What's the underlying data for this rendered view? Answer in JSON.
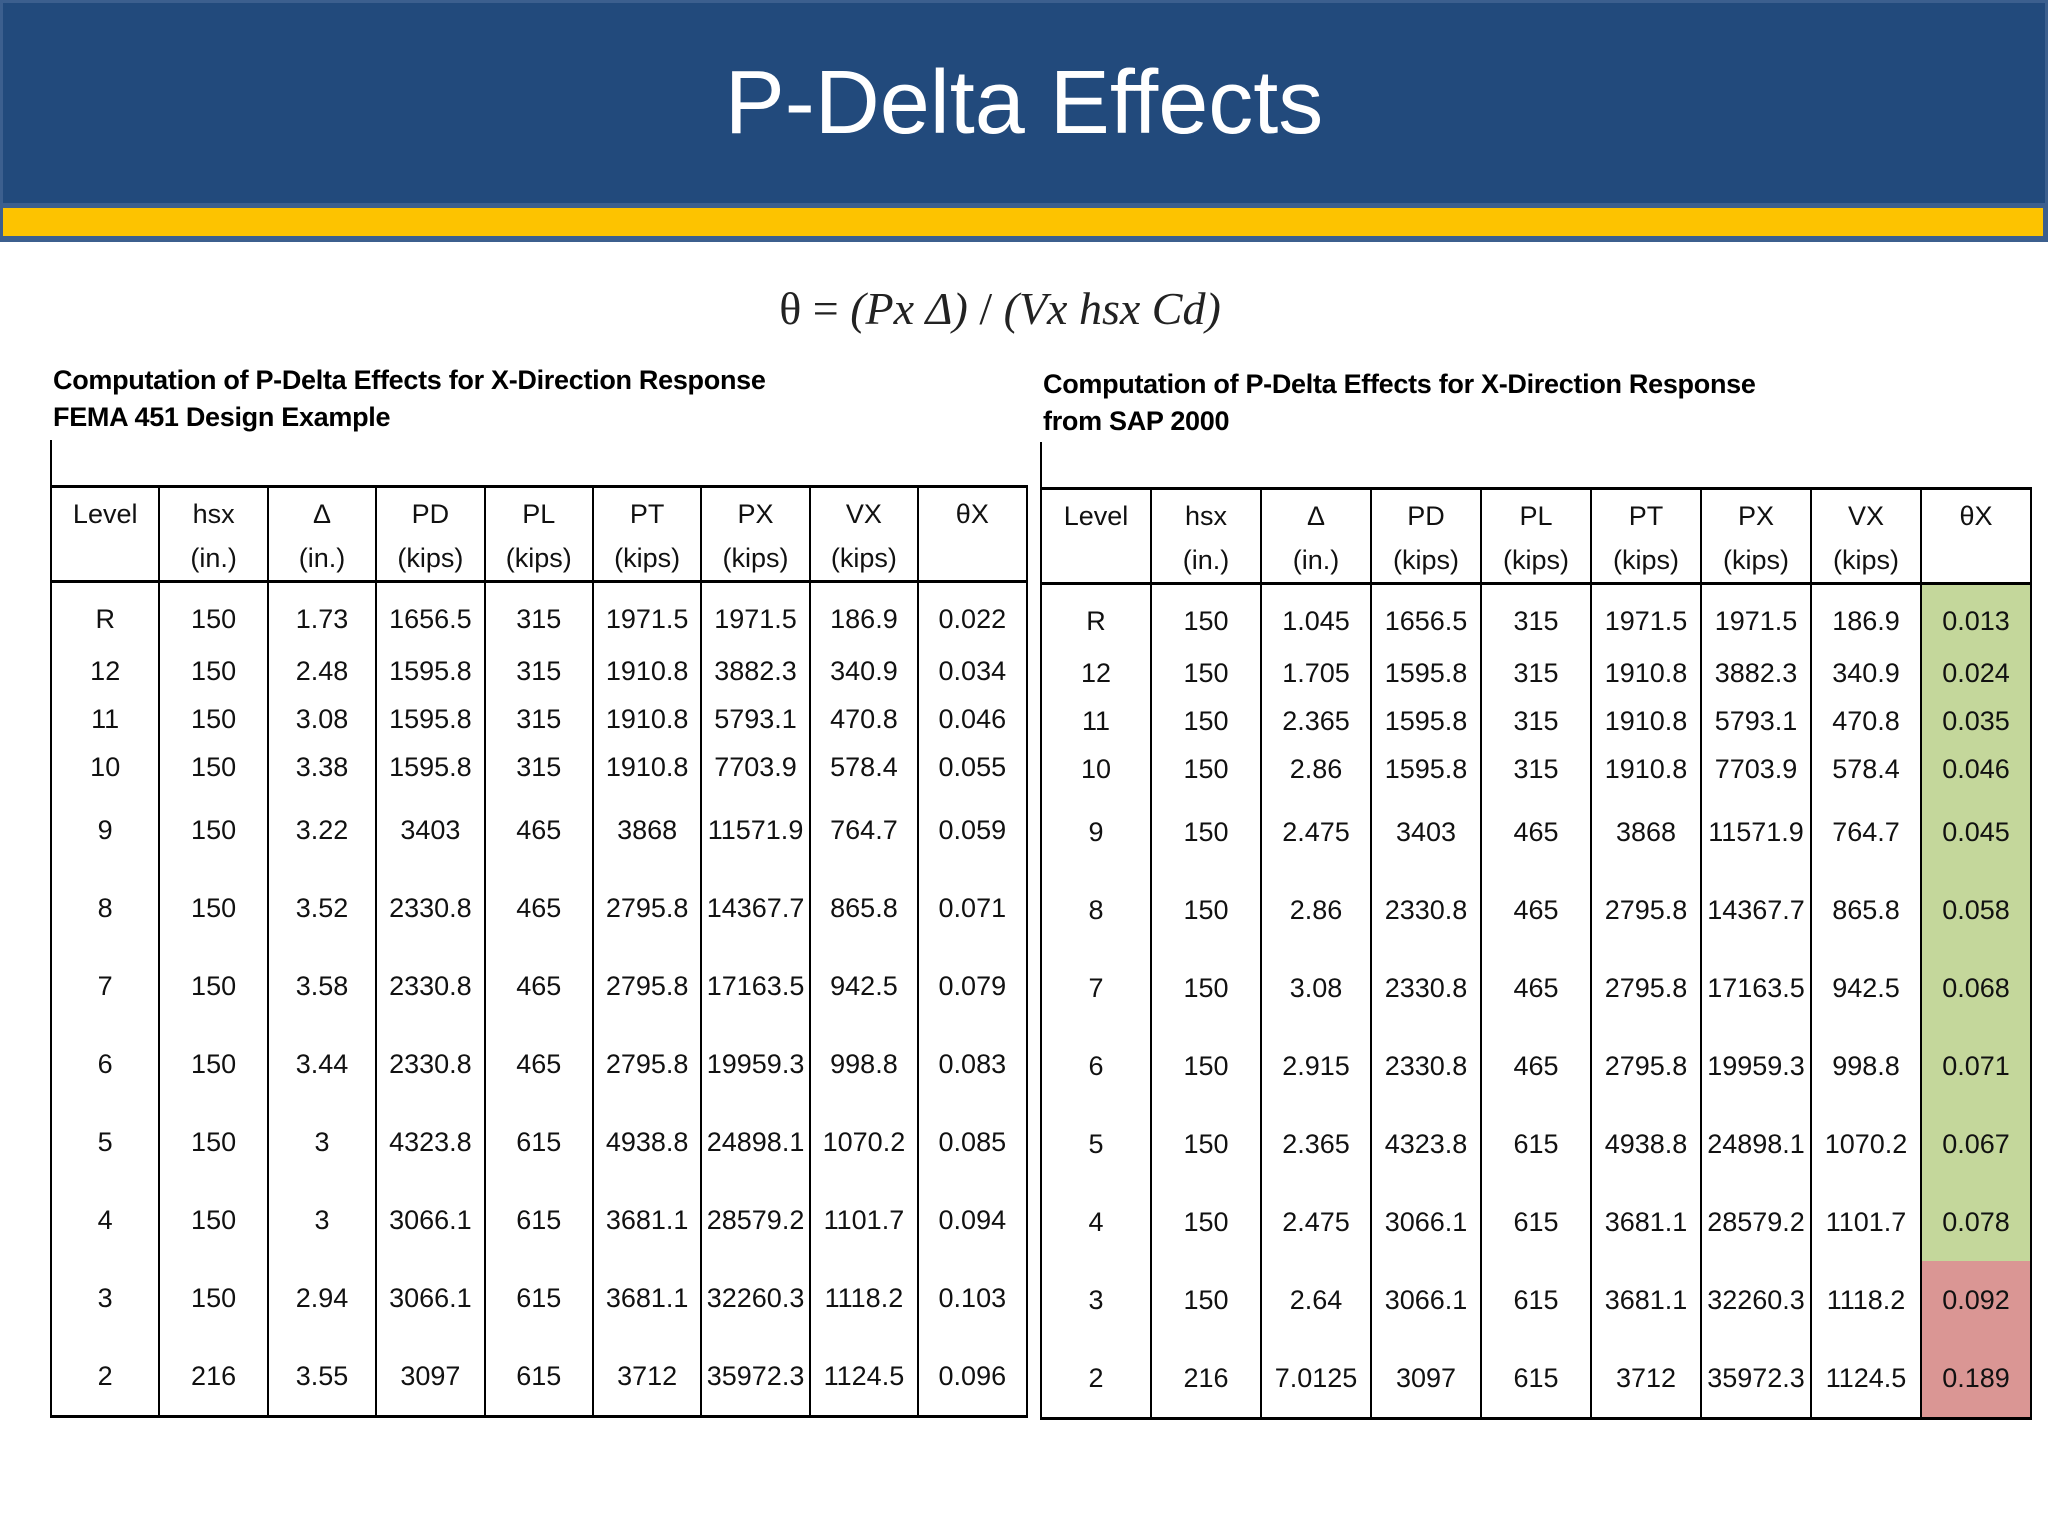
{
  "slide": {
    "title": "P-Delta Effects",
    "formula": {
      "theta": "θ",
      "equals": " = ",
      "numerator": "(Px Δ)",
      "divider": " / ",
      "denominator": "(Vx hsx Cd)"
    },
    "colors": {
      "banner": "#224a7c",
      "stripe": "#fdc300",
      "ok_cell": "#c4d79b",
      "exceed_cell": "#da9694"
    }
  },
  "left_table": {
    "caption_line1": "Computation of P-Delta Effects for X-Direction Response",
    "caption_line2": "FEMA 451 Design Example",
    "headers": [
      {
        "l1": "Level",
        "l2": ""
      },
      {
        "l1": "hsx",
        "l2": "(in.)"
      },
      {
        "l1": "Δ",
        "l2": "(in.)"
      },
      {
        "l1": "PD",
        "l2": "(kips)"
      },
      {
        "l1": "PL",
        "l2": "(kips)"
      },
      {
        "l1": "PT",
        "l2": "(kips)"
      },
      {
        "l1": "PX",
        "l2": "(kips)"
      },
      {
        "l1": "VX",
        "l2": "(kips)"
      },
      {
        "l1": "θX",
        "l2": ""
      }
    ],
    "rows": [
      [
        "R",
        "150",
        "1.73",
        "1656.5",
        "315",
        "1971.5",
        "1971.5",
        "186.9",
        "0.022"
      ],
      [
        "12",
        "150",
        "2.48",
        "1595.8",
        "315",
        "1910.8",
        "3882.3",
        "340.9",
        "0.034"
      ],
      [
        "11",
        "150",
        "3.08",
        "1595.8",
        "315",
        "1910.8",
        "5793.1",
        "470.8",
        "0.046"
      ],
      [
        "10",
        "150",
        "3.38",
        "1595.8",
        "315",
        "1910.8",
        "7703.9",
        "578.4",
        "0.055"
      ],
      [
        "9",
        "150",
        "3.22",
        "3403",
        "465",
        "3868",
        "11571.9",
        "764.7",
        "0.059"
      ],
      [
        "8",
        "150",
        "3.52",
        "2330.8",
        "465",
        "2795.8",
        "14367.7",
        "865.8",
        "0.071"
      ],
      [
        "7",
        "150",
        "3.58",
        "2330.8",
        "465",
        "2795.8",
        "17163.5",
        "942.5",
        "0.079"
      ],
      [
        "6",
        "150",
        "3.44",
        "2330.8",
        "465",
        "2795.8",
        "19959.3",
        "998.8",
        "0.083"
      ],
      [
        "5",
        "150",
        "3",
        "4323.8",
        "615",
        "4938.8",
        "24898.1",
        "1070.2",
        "0.085"
      ],
      [
        "4",
        "150",
        "3",
        "3066.1",
        "615",
        "3681.1",
        "28579.2",
        "1101.7",
        "0.094"
      ],
      [
        "3",
        "150",
        "2.94",
        "3066.1",
        "615",
        "3681.1",
        "32260.3",
        "1118.2",
        "0.103"
      ],
      [
        "2",
        "216",
        "3.55",
        "3097",
        "615",
        "3712",
        "35972.3",
        "1124.5",
        "0.096"
      ]
    ]
  },
  "right_table": {
    "caption_line1": "Computation of P-Delta Effects for X-Direction Response",
    "caption_line2": "from SAP 2000",
    "headers": [
      {
        "l1": "Level",
        "l2": ""
      },
      {
        "l1": "hsx",
        "l2": "(in.)"
      },
      {
        "l1": "Δ",
        "l2": "(in.)"
      },
      {
        "l1": "PD",
        "l2": "(kips)"
      },
      {
        "l1": "PL",
        "l2": "(kips)"
      },
      {
        "l1": "PT",
        "l2": "(kips)"
      },
      {
        "l1": "PX",
        "l2": "(kips)"
      },
      {
        "l1": "VX",
        "l2": "(kips)"
      },
      {
        "l1": "θX",
        "l2": ""
      }
    ],
    "rows": [
      [
        "R",
        "150",
        "1.045",
        "1656.5",
        "315",
        "1971.5",
        "1971.5",
        "186.9",
        "0.013"
      ],
      [
        "12",
        "150",
        "1.705",
        "1595.8",
        "315",
        "1910.8",
        "3882.3",
        "340.9",
        "0.024"
      ],
      [
        "11",
        "150",
        "2.365",
        "1595.8",
        "315",
        "1910.8",
        "5793.1",
        "470.8",
        "0.035"
      ],
      [
        "10",
        "150",
        "2.86",
        "1595.8",
        "315",
        "1910.8",
        "7703.9",
        "578.4",
        "0.046"
      ],
      [
        "9",
        "150",
        "2.475",
        "3403",
        "465",
        "3868",
        "11571.9",
        "764.7",
        "0.045"
      ],
      [
        "8",
        "150",
        "2.86",
        "2330.8",
        "465",
        "2795.8",
        "14367.7",
        "865.8",
        "0.058"
      ],
      [
        "7",
        "150",
        "3.08",
        "2330.8",
        "465",
        "2795.8",
        "17163.5",
        "942.5",
        "0.068"
      ],
      [
        "6",
        "150",
        "2.915",
        "2330.8",
        "465",
        "2795.8",
        "19959.3",
        "998.8",
        "0.071"
      ],
      [
        "5",
        "150",
        "2.365",
        "4323.8",
        "615",
        "4938.8",
        "24898.1",
        "1070.2",
        "0.067"
      ],
      [
        "4",
        "150",
        "2.475",
        "3066.1",
        "615",
        "3681.1",
        "28579.2",
        "1101.7",
        "0.078"
      ],
      [
        "3",
        "150",
        "2.64",
        "3066.1",
        "615",
        "3681.1",
        "32260.3",
        "1118.2",
        "0.092"
      ],
      [
        "2",
        "216",
        "7.0125",
        "3097",
        "615",
        "3712",
        "35972.3",
        "1124.5",
        "0.189"
      ]
    ],
    "theta_status": [
      "ok",
      "ok",
      "ok",
      "ok",
      "ok",
      "ok",
      "ok",
      "ok",
      "ok",
      "ok",
      "exceed",
      "exceed"
    ]
  }
}
